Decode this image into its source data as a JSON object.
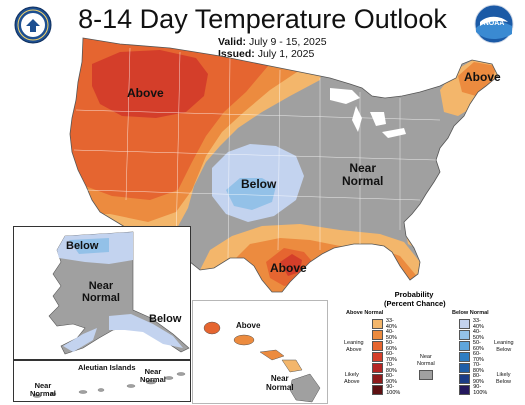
{
  "header": {
    "title": "8-14 Day Temperature Outlook",
    "valid_label": "Valid:",
    "valid_dates": "July 9 - 15, 2025",
    "issued_label": "Issued:",
    "issued_date": "July 1, 2025"
  },
  "logos": {
    "left": "doc-seal-logo",
    "right": "noaa-logo",
    "right_text": "NOAA"
  },
  "map_labels": {
    "west": "Above",
    "plains": "Below",
    "east": "Near\nNormal",
    "south": "Above",
    "northeast": "Above",
    "alaska_north": "Below",
    "alaska_center": "Near\nNormal",
    "alaska_south": "Below",
    "hawaii_top": "Above",
    "hawaii_bottom": "Near\nNormal",
    "aleutian_title": "Aleutian Islands",
    "aleutian_left": "Near\nNormal",
    "aleutian_right": "Near\nNormal"
  },
  "legend": {
    "title": "Probability\n(Percent Chance)",
    "above_header": "Above Normal",
    "below_header": "Below Normal",
    "near_label": "Near\nNormal",
    "leaning_above": "Leaning\nAbove",
    "likely_above": "Likely\nAbove",
    "leaning_below": "Leaning\nBelow",
    "likely_below": "Likely\nBelow",
    "above_bins": [
      {
        "label": "33-40%",
        "color": "#f3b66b"
      },
      {
        "label": "40-50%",
        "color": "#ec8b3f"
      },
      {
        "label": "50-60%",
        "color": "#e56530"
      },
      {
        "label": "60-70%",
        "color": "#d43e2a"
      },
      {
        "label": "70-80%",
        "color": "#b52523"
      },
      {
        "label": "80-90%",
        "color": "#8e1b1c"
      },
      {
        "label": "90-100%",
        "color": "#5e1012"
      }
    ],
    "below_bins": [
      {
        "label": "33-40%",
        "color": "#c3d3ef"
      },
      {
        "label": "40-50%",
        "color": "#93c1e8"
      },
      {
        "label": "50-60%",
        "color": "#5fa6dc"
      },
      {
        "label": "60-70%",
        "color": "#2f7ec3"
      },
      {
        "label": "70-80%",
        "color": "#1f5ea7"
      },
      {
        "label": "80-90%",
        "color": "#1a3b86"
      },
      {
        "label": "90-100%",
        "color": "#24185e"
      }
    ],
    "near_color": "#a0a0a0"
  },
  "colors": {
    "above_33": "#f3b66b",
    "above_40": "#ec8b3f",
    "above_50": "#e56530",
    "above_60": "#d43e2a",
    "below_33": "#c3d3ef",
    "below_40": "#93c1e8",
    "near": "#a0a0a0",
    "water": "#ffffff"
  }
}
